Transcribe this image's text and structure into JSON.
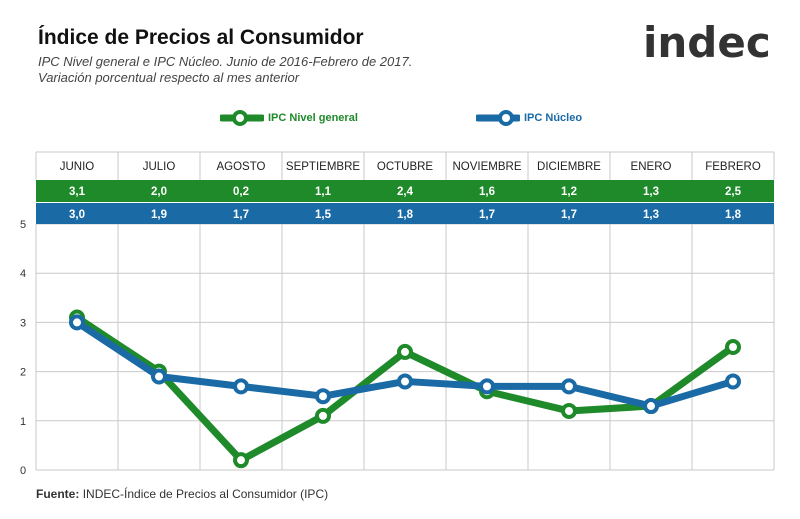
{
  "header": {
    "title": "Índice de Precios al Consumidor",
    "subtitle_line1": "IPC Nivel general e IPC Núcleo. Junio de 2016-Febrero de 2017.",
    "subtitle_line2": "Variación porcentual respecto al mes anterior",
    "logo_text": "indec"
  },
  "footer": {
    "source_label": "Fuente:",
    "source_text": "INDEC-Índice de Precios al Consumidor (IPC)"
  },
  "colors": {
    "green": "#1f8a2a",
    "blue": "#1a6aa6",
    "grid": "#c9c9c9"
  },
  "chart_data": {
    "type": "line",
    "title": "Índice de Precios al Consumidor",
    "categories": [
      "JUNIO",
      "JULIO",
      "AGOSTO",
      "SEPTIEMBRE",
      "OCTUBRE",
      "NOVIEMBRE",
      "DICIEMBRE",
      "ENERO",
      "FEBRERO"
    ],
    "series": [
      {
        "name": "IPC Nivel general",
        "color": "#1f8a2a",
        "values": [
          3.1,
          2.0,
          0.2,
          1.1,
          2.4,
          1.6,
          1.2,
          1.3,
          2.5
        ],
        "labels": [
          "3,1",
          "2,0",
          "0,2",
          "1,1",
          "2,4",
          "1,6",
          "1,2",
          "1,3",
          "2,5"
        ]
      },
      {
        "name": "IPC Núcleo",
        "color": "#1a6aa6",
        "values": [
          3.0,
          1.9,
          1.7,
          1.5,
          1.8,
          1.7,
          1.7,
          1.3,
          1.8
        ],
        "labels": [
          "3,0",
          "1,9",
          "1,7",
          "1,5",
          "1,8",
          "1,7",
          "1,7",
          "1,3",
          "1,8"
        ]
      }
    ],
    "yticks": [
      "0",
      "1",
      "2",
      "3",
      "4",
      "5"
    ],
    "ylim": [
      0,
      5
    ],
    "grid": true,
    "legend_position": "top"
  }
}
